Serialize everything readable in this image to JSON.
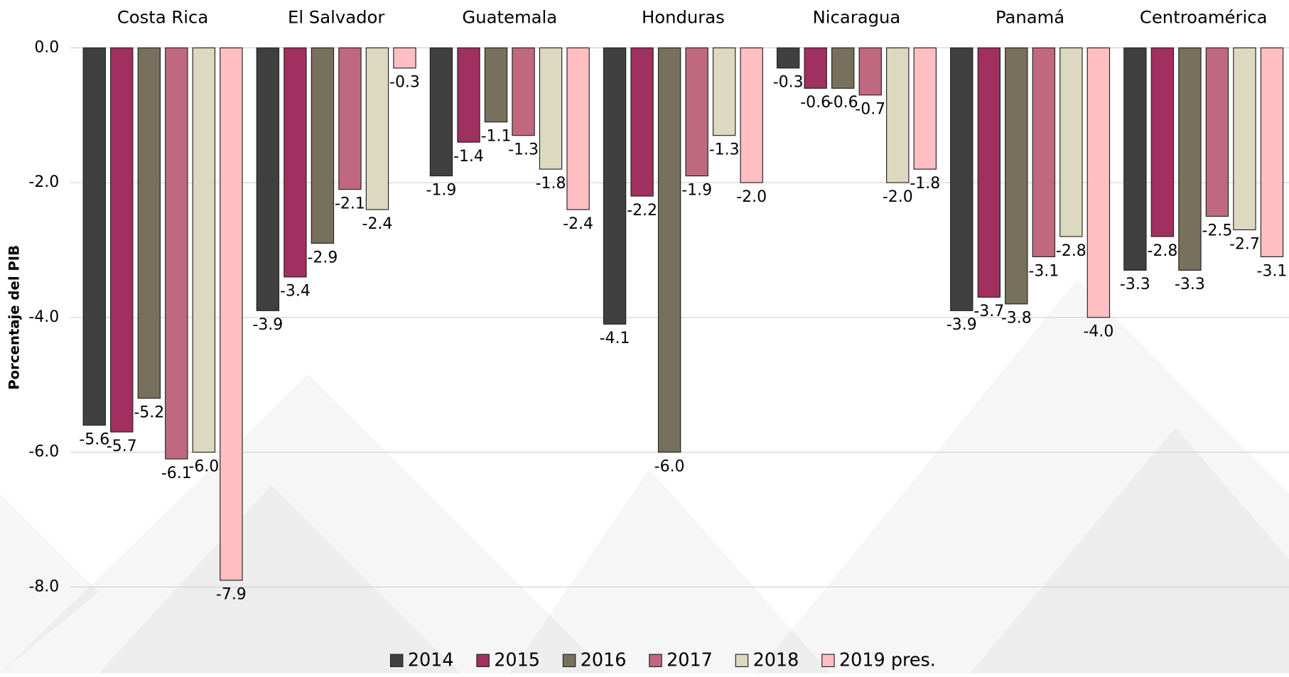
{
  "chart_data": {
    "type": "bar",
    "y_axis_label": "Porcentaje del PIB",
    "categories": [
      "Costa Rica",
      "El Salvador",
      "Guatemala",
      "Honduras",
      "Nicaragua",
      "Panamá",
      "Centroamérica"
    ],
    "series": [
      {
        "name": "2014",
        "color": "#404040",
        "values": [
          -5.6,
          -3.9,
          -1.9,
          -4.1,
          -0.3,
          -3.9,
          -3.3
        ],
        "value_labels": [
          "-5.6",
          "-3.9",
          "-1.9",
          "-4.1",
          "-0.3",
          "-3.9",
          "-3.3"
        ]
      },
      {
        "name": "2015",
        "color": "#a0305f",
        "values": [
          -5.7,
          -3.4,
          -1.4,
          -2.2,
          -0.6,
          -3.7,
          -2.8
        ],
        "value_labels": [
          "-5.7",
          "-3.4",
          "-1.4",
          "-2.2",
          "-0.6",
          "-3.7",
          "-2.8"
        ]
      },
      {
        "name": "2016",
        "color": "#77705c",
        "values": [
          -5.2,
          -2.9,
          -1.1,
          -6.0,
          -0.6,
          -3.8,
          -3.3
        ],
        "value_labels": [
          "-5.2",
          "-2.9",
          "-1.1",
          "-6.0",
          "-0.6",
          "-3.8",
          "-3.3"
        ]
      },
      {
        "name": "2017",
        "color": "#c0687f",
        "values": [
          -6.1,
          -2.1,
          -1.3,
          -1.9,
          -0.7,
          -3.1,
          -2.5
        ],
        "value_labels": [
          "-6.1",
          "-2.1",
          "-1.3",
          "-1.9",
          "-0.7",
          "-3.1",
          "-2.5"
        ]
      },
      {
        "name": "2018",
        "color": "#ddd8c0",
        "values": [
          -6.0,
          -2.4,
          -1.8,
          -1.3,
          -2.0,
          -2.8,
          -2.7
        ],
        "value_labels": [
          "-6.0",
          "-2.4",
          "-1.8",
          "-1.3",
          "-2.0",
          "-2.8",
          "-2.7"
        ]
      },
      {
        "name": "2019 pres.",
        "color": "#ffbfc3",
        "values": [
          -7.9,
          -0.3,
          -2.4,
          -2.0,
          -1.8,
          -4.0,
          -3.1
        ],
        "value_labels": [
          "-7.9",
          "-0.3",
          "-2.4",
          "-2.0",
          "-1.8",
          "-4.0",
          "-3.1"
        ]
      }
    ],
    "ylim": [
      -9,
      0
    ],
    "yticks": [
      {
        "value": 0,
        "label": "0.0"
      },
      {
        "value": -2,
        "label": "-2.0"
      },
      {
        "value": -4,
        "label": "-4.0"
      },
      {
        "value": -6,
        "label": "-6.0"
      },
      {
        "value": -8,
        "label": "-8.0"
      }
    ],
    "grid": true,
    "legend": "bottom"
  }
}
